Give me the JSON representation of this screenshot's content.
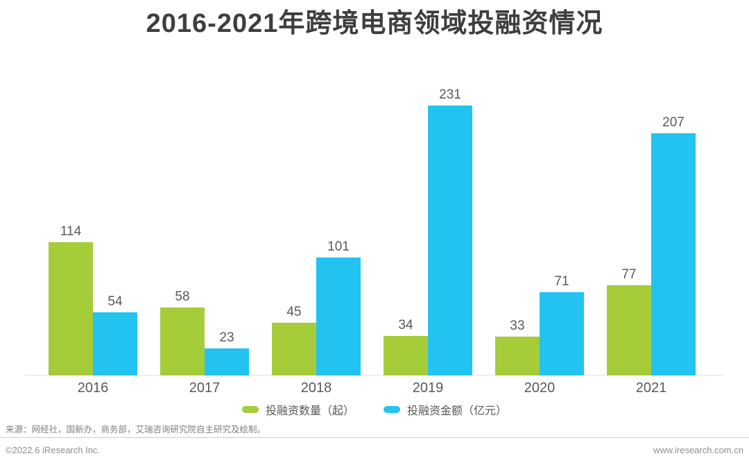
{
  "page": {
    "title": "2016-2021年跨境电商领域投融资情况"
  },
  "chart_data": {
    "type": "bar",
    "title": "2016-2021年跨境电商领域投融资情况",
    "categories": [
      "2016",
      "2017",
      "2018",
      "2019",
      "2020",
      "2021"
    ],
    "series": [
      {
        "name": "投融资数量（起）",
        "color": "#a5cd39",
        "values": [
          114,
          58,
          45,
          34,
          33,
          77
        ]
      },
      {
        "name": "投融资金额（亿元）",
        "color": "#22c3f1",
        "values": [
          54,
          23,
          101,
          231,
          71,
          207
        ]
      }
    ],
    "xlabel": "",
    "ylabel": "",
    "ylim": [
      0,
      240
    ],
    "grid": false,
    "axis_line": true,
    "legend_position": "bottom",
    "value_labels": true
  },
  "colors": {
    "title_text": "#3e3e3e",
    "label_text": "#595959",
    "source_text": "#7f7f7f",
    "footer_text": "#8e8e8e",
    "divider": "#cccccc"
  },
  "source": {
    "text": "来源：网经社，国新办，商务部，艾瑞咨询研究院自主研究及绘制。"
  },
  "footer": {
    "left": "©2022.6 iResearch Inc.",
    "right": "www.iresearch.com.cn"
  }
}
